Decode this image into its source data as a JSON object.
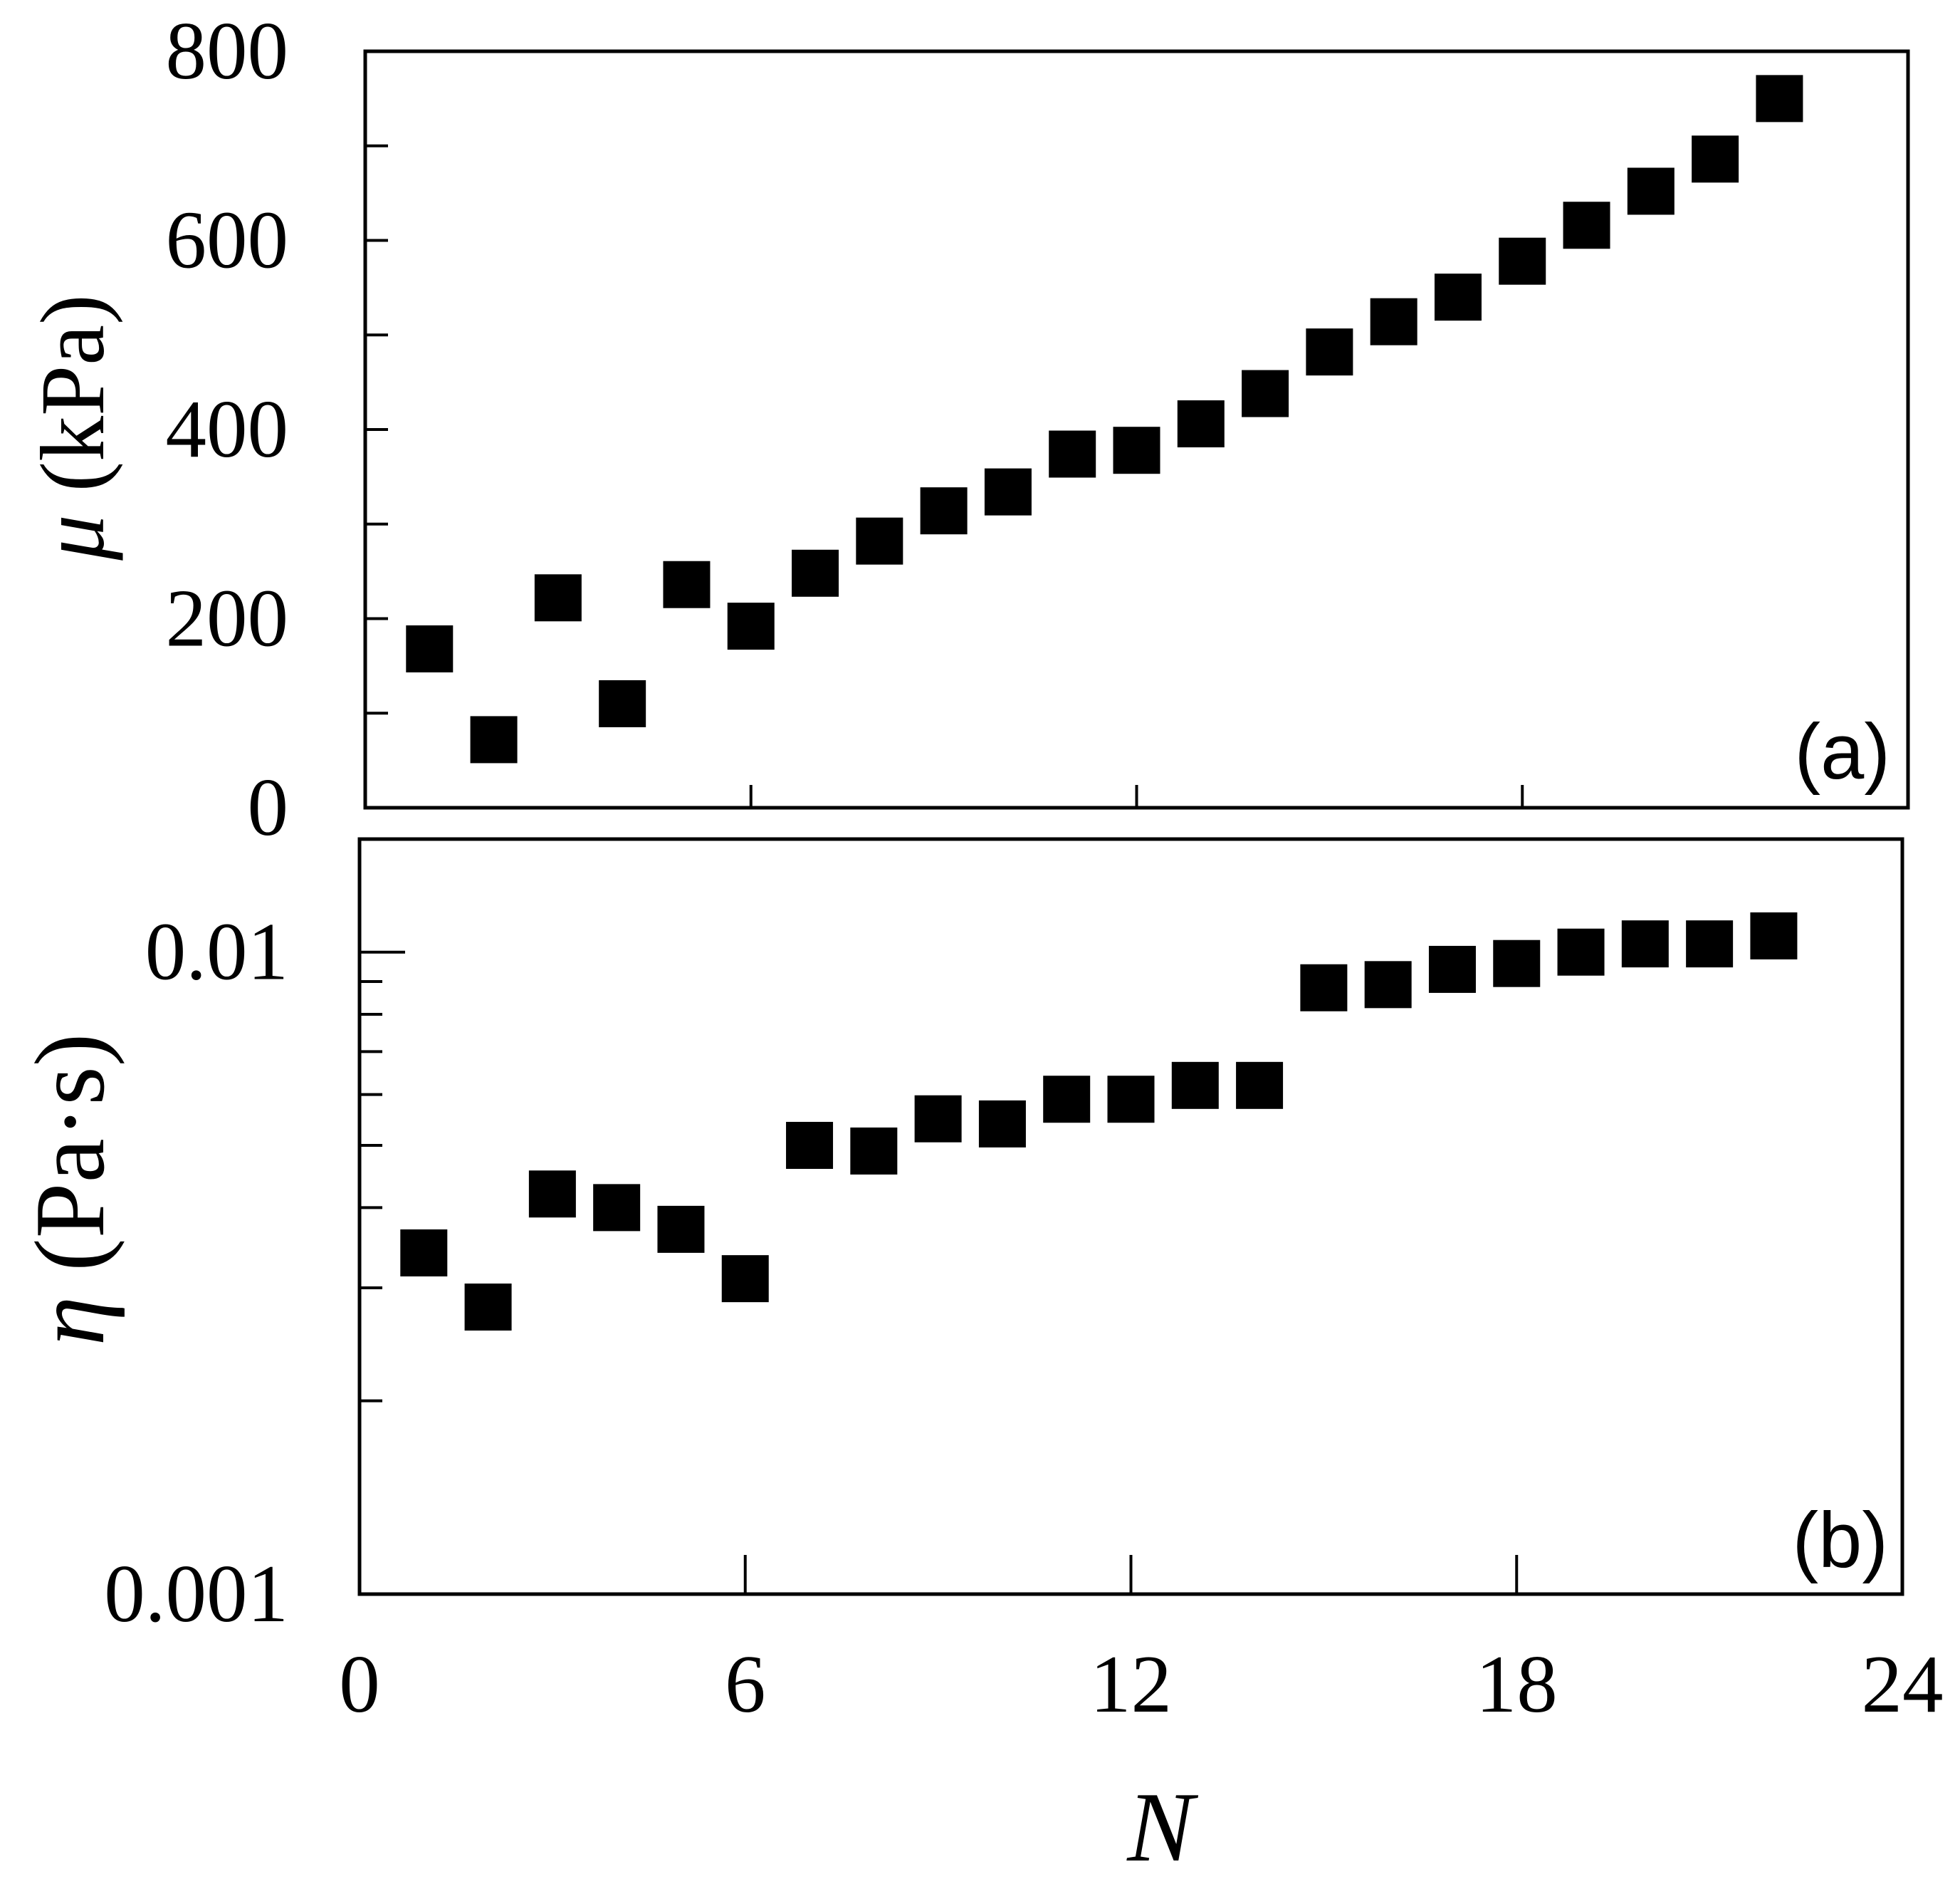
{
  "chart_data": [
    {
      "panel": "a",
      "type": "scatter",
      "panel_label": "(a)",
      "xlabel": "",
      "ylabel_symbol": "μ",
      "ylabel_unit": " (kPa)",
      "xlim": [
        0,
        24
      ],
      "ylim": [
        0,
        800
      ],
      "yscale": "linear",
      "x_ticks": [
        6,
        12,
        18
      ],
      "y_tick_labels": [
        {
          "value": 0,
          "label": "0"
        },
        {
          "value": 200,
          "label": "200"
        },
        {
          "value": 400,
          "label": "400"
        },
        {
          "value": 600,
          "label": "600"
        },
        {
          "value": 800,
          "label": "800"
        }
      ],
      "y_minor_ticks": [
        100,
        300,
        500,
        700
      ],
      "marker": "square",
      "marker_color": "#000000",
      "series": [
        {
          "x": [
            1,
            2,
            3,
            4,
            5,
            6,
            7,
            8,
            9,
            10,
            11,
            12,
            13,
            14,
            15,
            16,
            17,
            18,
            19,
            20,
            21,
            22
          ],
          "y": [
            168,
            72,
            222,
            110,
            236,
            192,
            248,
            282,
            314,
            334,
            374,
            378,
            406,
            438,
            482,
            514,
            540,
            578,
            616,
            652,
            686,
            750
          ]
        }
      ]
    },
    {
      "panel": "b",
      "type": "scatter",
      "panel_label": "(b)",
      "xlabel": "N",
      "ylabel_symbol": "η",
      "ylabel_unit": " (Pa·s)",
      "xlim": [
        0,
        24
      ],
      "ylim": [
        0.001,
        0.015
      ],
      "yscale": "log",
      "x_tick_labels": [
        {
          "value": 0,
          "label": "0"
        },
        {
          "value": 6,
          "label": "6"
        },
        {
          "value": 12,
          "label": "12"
        },
        {
          "value": 18,
          "label": "18"
        },
        {
          "value": 24,
          "label": "24"
        }
      ],
      "x_ticks": [
        6,
        12,
        18
      ],
      "y_tick_labels": [
        {
          "value": 0.001,
          "label": "0.001"
        },
        {
          "value": 0.01,
          "label": "0.01"
        }
      ],
      "y_minor_ticks": [
        0.002,
        0.003,
        0.004,
        0.005,
        0.006,
        0.007,
        0.008,
        0.009
      ],
      "marker": "square",
      "marker_color": "#000000",
      "series": [
        {
          "x": [
            1,
            2,
            3,
            4,
            5,
            6,
            7,
            8,
            9,
            10,
            11,
            12,
            13,
            14,
            15,
            16,
            17,
            18,
            19,
            20,
            21,
            22
          ],
          "y": [
            0.0034,
            0.0028,
            0.0042,
            0.004,
            0.0037,
            0.0031,
            0.005,
            0.0049,
            0.0055,
            0.0054,
            0.0059,
            0.0059,
            0.0062,
            0.0062,
            0.0088,
            0.0089,
            0.0094,
            0.0096,
            0.01,
            0.0103,
            0.0103,
            0.0106
          ]
        }
      ]
    }
  ]
}
